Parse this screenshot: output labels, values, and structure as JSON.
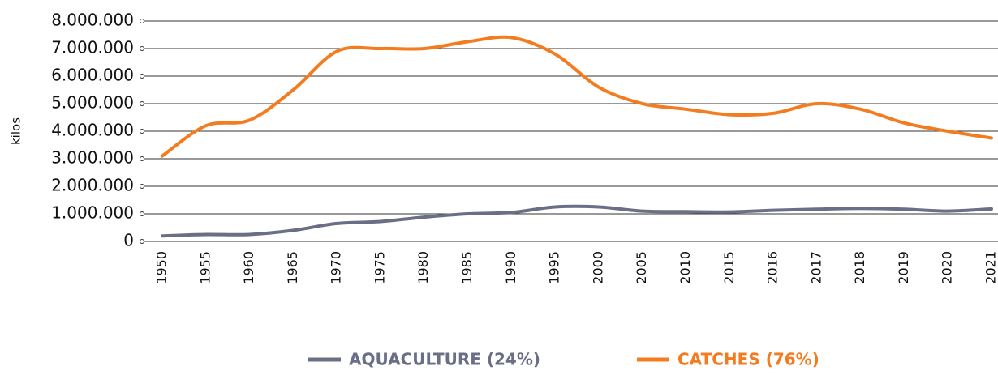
{
  "chart_data": {
    "type": "line",
    "y_label": "kilos",
    "categories": [
      "1950",
      "1955",
      "1960",
      "1965",
      "1970",
      "1975",
      "1980",
      "1985",
      "1990",
      "1995",
      "2000",
      "2005",
      "2010",
      "2015",
      "2016",
      "2017",
      "2018",
      "2019",
      "2020",
      "2021"
    ],
    "series": [
      {
        "name": "AQUACULTURE (24%)",
        "color": "#6b6f86",
        "values": [
          200000,
          250000,
          250000,
          400000,
          650000,
          720000,
          880000,
          1000000,
          1050000,
          1250000,
          1250000,
          1100000,
          1080000,
          1070000,
          1130000,
          1170000,
          1200000,
          1170000,
          1100000,
          1180000
        ]
      },
      {
        "name": "CATCHES (76%)",
        "color": "#f47c20",
        "values": [
          3100000,
          4200000,
          4400000,
          5500000,
          6900000,
          7000000,
          7000000,
          7250000,
          7400000,
          6800000,
          5600000,
          5000000,
          4800000,
          4600000,
          4650000,
          5000000,
          4800000,
          4300000,
          4000000,
          3750000
        ]
      }
    ],
    "ylim": [
      0,
      8000000
    ],
    "yticks": [
      0,
      {
        "value": 1000000,
        "label": "1.000.000"
      },
      {
        "value": 2000000,
        "label": "2.000.000"
      },
      {
        "value": 3000000,
        "label": "3.000.000"
      },
      {
        "value": 4000000,
        "label": "4.000.000"
      },
      {
        "value": 5000000,
        "label": "5.000.000"
      },
      {
        "value": 6000000,
        "label": "6.000.000"
      },
      {
        "value": 7000000,
        "label": "7.000.000"
      },
      {
        "value": 8000000,
        "label": "8.000.000"
      }
    ],
    "grid": true
  }
}
